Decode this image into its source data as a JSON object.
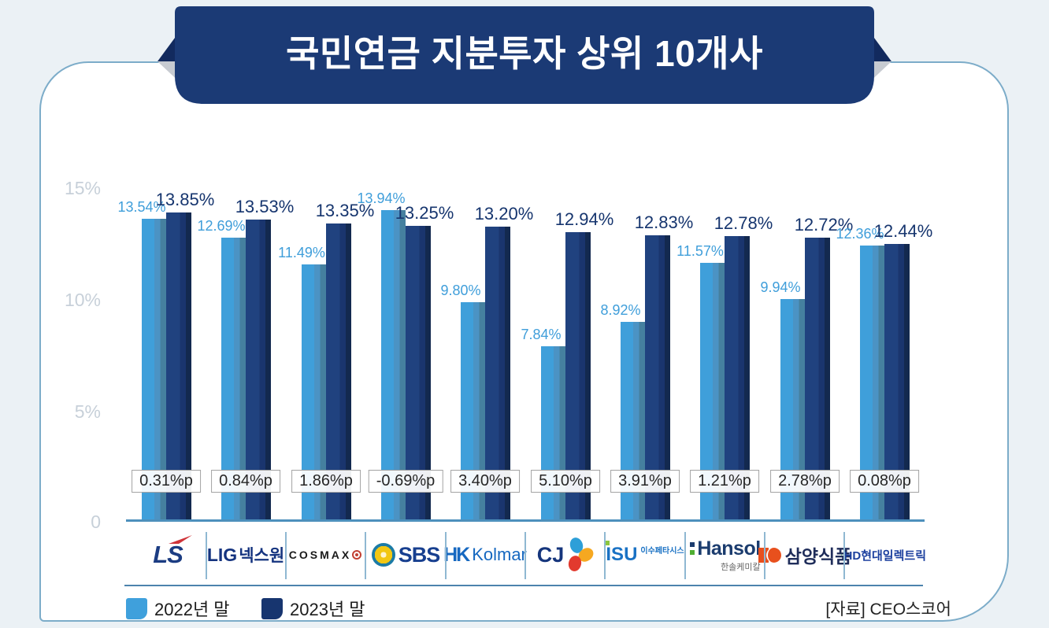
{
  "title": "국민연금 지분투자 상위 10개사",
  "source": "[자료] CEO스코어",
  "y_axis": [
    "15%",
    "10%",
    "5%",
    "0"
  ],
  "legend": {
    "items": [
      {
        "label": "2022년 말",
        "color": "#3fa0dc"
      },
      {
        "label": "2023년 말",
        "color": "#17356f"
      }
    ]
  },
  "chart_data": {
    "type": "bar",
    "title": "국민연금 지분투자 상위 10개사",
    "categories": [
      "LS",
      "LIG넥스원",
      "COSMAX",
      "SBS",
      "HK Kolmar",
      "CJ",
      "ISU 이수페타시스",
      "Hansol 한솔케미칼",
      "삼양식품",
      "HD현대일렉트릭"
    ],
    "series": [
      {
        "name": "2022년 말",
        "color": "#3fa0dc",
        "values": [
          13.54,
          12.69,
          11.49,
          13.94,
          9.8,
          7.84,
          8.92,
          11.57,
          9.94,
          12.36
        ]
      },
      {
        "name": "2023년 말",
        "color": "#1d3f80",
        "values": [
          13.85,
          13.53,
          13.35,
          13.25,
          13.2,
          12.94,
          12.83,
          12.78,
          12.72,
          12.44
        ]
      }
    ],
    "deltas": [
      "0.31%p",
      "0.84%p",
      "1.86%p",
      "-0.69%p",
      "3.40%p",
      "5.10%p",
      "3.91%p",
      "1.21%p",
      "2.78%p",
      "0.08%p"
    ],
    "ylabel": "",
    "ylim": [
      0,
      15
    ],
    "yticks": [
      "0",
      "5%",
      "10%",
      "15%"
    ],
    "grid": false,
    "legend_position": "bottom-left",
    "value_suffix": "%"
  },
  "logos": [
    {
      "main": "LS"
    },
    {
      "main": "LIG",
      "kr": "넥스원"
    },
    {
      "main": "COSMAX"
    },
    {
      "main": "SBS"
    },
    {
      "sym": "HK",
      "main": "Kolmar"
    },
    {
      "main": "CJ"
    },
    {
      "main": "ISU",
      "sub": "이수페타시스"
    },
    {
      "main": "Hansol",
      "sub": "한솔케미칼"
    },
    {
      "main": "삼양식품"
    },
    {
      "main": "HD현대일렉트릭"
    }
  ]
}
